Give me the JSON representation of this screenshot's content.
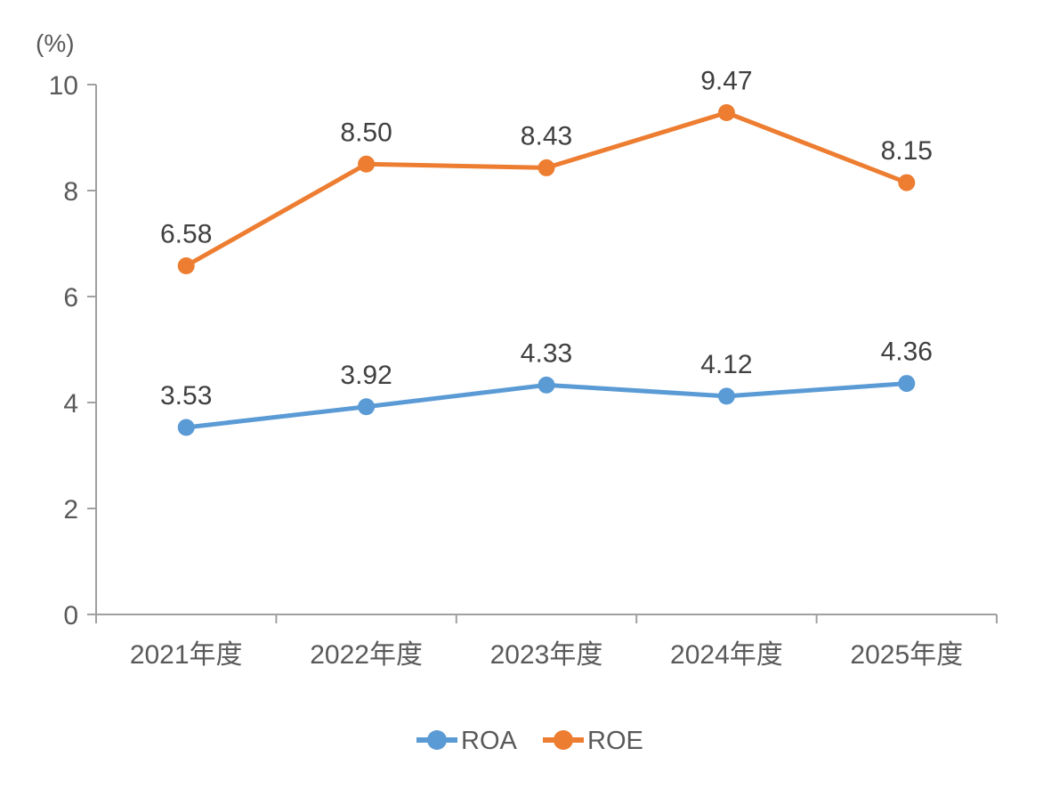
{
  "chart_data": {
    "type": "line",
    "title": "",
    "unit_label": "(%)",
    "categories": [
      "2021年度",
      "2022年度",
      "2023年度",
      "2024年度",
      "2025年度"
    ],
    "series": [
      {
        "name": "ROA",
        "color": "#5B9BD5",
        "values": [
          3.53,
          3.92,
          4.33,
          4.12,
          4.36
        ],
        "labels": [
          "3.53",
          "3.92",
          "4.33",
          "4.12",
          "4.36"
        ]
      },
      {
        "name": "ROE",
        "color": "#ED7D31",
        "values": [
          6.58,
          8.5,
          8.43,
          9.47,
          8.15
        ],
        "labels": [
          "6.58",
          "8.50",
          "8.43",
          "9.47",
          "8.15"
        ]
      }
    ],
    "y_axis": {
      "min": 0,
      "max": 10,
      "tick_step": 2,
      "tick_labels": [
        "0",
        "2",
        "4",
        "6",
        "8",
        "10"
      ]
    },
    "grid": false,
    "legend": {
      "position": "bottom-center",
      "entries": [
        "ROA",
        "ROE"
      ]
    },
    "styles": {
      "axis_color": "#A0A0A0",
      "tick_label_color": "#595959",
      "data_label_color": "#404040",
      "legend_text_color": "#595959",
      "background": "#FFFFFF"
    }
  }
}
